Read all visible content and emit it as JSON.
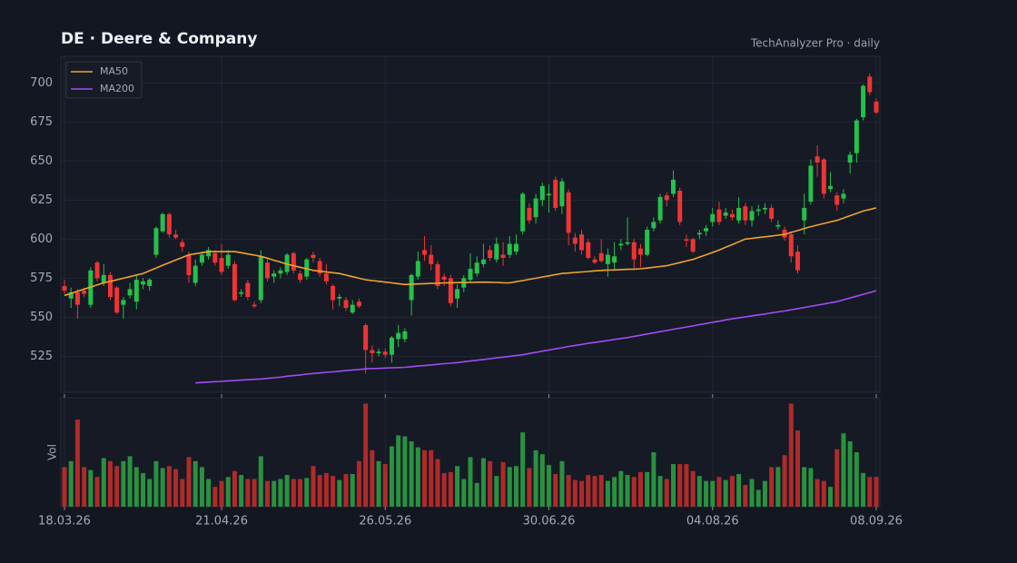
{
  "chart_data": {
    "type": "candlestick",
    "title": "DE · Deere & Company",
    "subtitle": "TechAnalyzer Pro · daily",
    "x": [
      "18.03.26",
      "19.03.26",
      "20.03.26",
      "23.03.26",
      "24.03.26",
      "25.03.26",
      "26.03.26",
      "27.03.26",
      "30.03.26",
      "31.03.26",
      "01.04.26",
      "02.04.26",
      "03.04.26",
      "06.04.26",
      "07.04.26",
      "08.04.26",
      "09.04.26",
      "10.04.26",
      "13.04.26",
      "14.04.26",
      "15.04.26",
      "16.04.26",
      "17.04.26",
      "20.04.26",
      "21.04.26",
      "22.04.26",
      "23.04.26",
      "24.04.26",
      "27.04.26",
      "28.04.26",
      "29.04.26",
      "30.04.26",
      "01.05.26",
      "04.05.26",
      "05.05.26",
      "06.05.26",
      "07.05.26",
      "08.05.26",
      "11.05.26",
      "12.05.26",
      "13.05.26",
      "14.05.26",
      "15.05.26",
      "18.05.26",
      "19.05.26",
      "20.05.26",
      "21.05.26",
      "22.05.26",
      "25.05.26",
      "26.05.26",
      "27.05.26",
      "28.05.26",
      "29.05.26",
      "01.06.26",
      "02.06.26",
      "03.06.26",
      "04.06.26",
      "05.06.26",
      "08.06.26",
      "09.06.26",
      "10.06.26",
      "11.06.26",
      "12.06.26",
      "15.06.26",
      "16.06.26",
      "17.06.26",
      "18.06.26",
      "19.06.26",
      "22.06.26",
      "23.06.26",
      "24.06.26",
      "25.06.26",
      "26.06.26",
      "29.06.26",
      "30.06.26",
      "01.07.26",
      "02.07.26",
      "03.07.26",
      "06.07.26",
      "07.07.26",
      "08.07.26",
      "09.07.26",
      "10.07.26",
      "13.07.26",
      "14.07.26",
      "15.07.26",
      "16.07.26",
      "17.07.26",
      "20.07.26",
      "21.07.26",
      "22.07.26",
      "23.07.26",
      "24.07.26",
      "27.07.26",
      "28.07.26",
      "29.07.26",
      "30.07.26",
      "31.07.26",
      "03.08.26",
      "04.08.26",
      "05.08.26",
      "06.08.26",
      "07.08.26",
      "10.08.26",
      "11.08.26",
      "12.08.26",
      "13.08.26",
      "14.08.26",
      "17.08.26",
      "18.08.26",
      "19.08.26",
      "20.08.26",
      "21.08.26",
      "24.08.26",
      "25.08.26",
      "26.08.26",
      "27.08.26",
      "28.08.26",
      "31.08.26",
      "01.09.26",
      "02.09.26",
      "03.09.26",
      "04.09.26",
      "07.09.26",
      "08.09.26"
    ],
    "open": [
      570,
      562,
      566,
      567,
      558,
      585,
      572,
      577,
      569,
      558,
      564,
      560,
      571,
      570,
      590,
      605,
      616,
      603,
      598,
      590,
      572,
      585,
      589,
      591,
      588,
      583,
      584,
      565,
      572,
      558,
      561,
      585,
      576,
      578,
      579,
      591,
      578,
      576,
      590,
      586,
      578,
      570,
      562,
      561,
      553,
      560,
      545,
      529,
      527,
      528,
      526,
      536,
      536,
      561,
      576,
      593,
      590,
      584,
      576,
      575,
      562,
      569,
      574,
      578,
      584,
      593,
      587,
      590,
      590,
      592,
      605,
      620,
      614,
      625,
      628,
      638,
      621,
      630,
      601,
      603,
      598,
      587,
      591,
      584,
      585,
      596,
      597,
      598,
      594,
      590,
      607,
      612,
      628,
      629,
      631,
      600,
      600,
      603,
      605,
      611,
      619,
      615,
      616,
      612,
      621,
      612,
      618,
      619,
      620,
      608,
      606,
      603,
      592,
      612,
      624,
      653,
      651,
      632,
      628,
      626,
      649,
      655,
      678,
      704,
      688
    ],
    "high": [
      574,
      569,
      568,
      569,
      582,
      586,
      584,
      579,
      570,
      563,
      572,
      577,
      575,
      575,
      608,
      617,
      617,
      606,
      600,
      592,
      587,
      592,
      595,
      593,
      597,
      593,
      586,
      568,
      574,
      560,
      593,
      588,
      580,
      582,
      591,
      592,
      580,
      588,
      592,
      588,
      584,
      571,
      565,
      563,
      561,
      562,
      546,
      532,
      530,
      530,
      538,
      545,
      543,
      578,
      592,
      602,
      596,
      586,
      578,
      577,
      571,
      577,
      591,
      589,
      597,
      596,
      601,
      598,
      602,
      603,
      630,
      623,
      629,
      636,
      635,
      640,
      639,
      632,
      604,
      606,
      600,
      589,
      600,
      594,
      598,
      600,
      614,
      600,
      597,
      608,
      614,
      629,
      630,
      644,
      633,
      603,
      601,
      606,
      609,
      620,
      624,
      620,
      619,
      627,
      623,
      621,
      622,
      623,
      622,
      612,
      608,
      605,
      596,
      629,
      651,
      660,
      652,
      643,
      630,
      632,
      656,
      677,
      699,
      706,
      690
    ],
    "low": [
      565,
      556,
      549,
      563,
      556,
      573,
      570,
      561,
      552,
      549,
      562,
      555,
      568,
      567,
      588,
      604,
      601,
      600,
      592,
      572,
      570,
      583,
      587,
      583,
      577,
      581,
      560,
      563,
      561,
      556,
      559,
      573,
      572,
      575,
      577,
      578,
      572,
      574,
      585,
      576,
      571,
      555,
      557,
      554,
      552,
      556,
      514,
      521,
      525,
      524,
      521,
      531,
      534,
      551,
      574,
      586,
      580,
      568,
      570,
      557,
      556,
      566,
      572,
      576,
      582,
      586,
      585,
      583,
      588,
      590,
      603,
      610,
      610,
      621,
      617,
      618,
      616,
      596,
      592,
      590,
      587,
      584,
      585,
      576,
      580,
      593,
      596,
      581,
      582,
      589,
      605,
      610,
      621,
      627,
      609,
      595,
      591,
      600,
      602,
      608,
      609,
      613,
      612,
      610,
      609,
      608,
      615,
      616,
      611,
      606,
      599,
      585,
      578,
      603,
      622,
      640,
      626,
      630,
      618,
      623,
      642,
      649,
      676,
      692,
      680
    ],
    "close": [
      567,
      566,
      558,
      565,
      580,
      575,
      577,
      563,
      553,
      561,
      568,
      574,
      573,
      574,
      607,
      616,
      603,
      601,
      595,
      577,
      583,
      590,
      593,
      585,
      579,
      590,
      561,
      566,
      563,
      557,
      589,
      575,
      578,
      580,
      590,
      580,
      574,
      587,
      588,
      578,
      573,
      561,
      563,
      556,
      558,
      557,
      529,
      527,
      528,
      526,
      537,
      540,
      541,
      577,
      586,
      590,
      584,
      570,
      574,
      559,
      568,
      575,
      581,
      585,
      587,
      588,
      597,
      588,
      597,
      597,
      629,
      612,
      626,
      634,
      629,
      620,
      637,
      604,
      597,
      593,
      588,
      585,
      586,
      590,
      589,
      597,
      598,
      587,
      590,
      606,
      611,
      627,
      625,
      638,
      611,
      599,
      592,
      604,
      607,
      616,
      611,
      617,
      614,
      620,
      612,
      618,
      619,
      620,
      613,
      609,
      601,
      589,
      580,
      620,
      647,
      649,
      629,
      634,
      622,
      629,
      654,
      676,
      698,
      694,
      681
    ],
    "up_color": "#26c04a",
    "down_color": "#ef3434",
    "series": [
      {
        "name": "MA50",
        "color": "#f0a32e",
        "values": [
          564,
          565.3,
          566.7,
          568,
          569.3,
          570.7,
          572,
          573,
          574,
          575,
          576,
          577,
          578,
          579.8,
          581.5,
          583.3,
          585,
          586.7,
          588.3,
          590,
          590.7,
          591.3,
          592,
          592,
          592,
          592,
          592,
          591.3,
          590.5,
          589.8,
          589,
          587.8,
          586.5,
          585.3,
          584,
          583,
          582,
          581,
          580,
          579.5,
          579,
          578.5,
          578,
          577,
          576,
          575,
          574,
          573.5,
          573,
          572.5,
          572,
          571.5,
          571,
          571.2,
          571.3,
          571.5,
          571.7,
          571.8,
          572,
          572.1,
          572.2,
          572.2,
          572.3,
          572.4,
          572.5,
          572.4,
          572.3,
          572.1,
          572,
          572.8,
          573.5,
          574.3,
          575,
          575.8,
          576.5,
          577.3,
          578,
          578.3,
          578.7,
          579,
          579.3,
          579.7,
          580,
          580.2,
          580.3,
          580.5,
          580.7,
          580.8,
          581,
          581.5,
          582,
          582.5,
          583,
          584,
          585,
          586,
          587,
          588.5,
          590,
          591.5,
          593,
          594.8,
          596.5,
          598.3,
          600,
          600.5,
          601,
          601.5,
          602,
          602.5,
          603,
          604.3,
          605.5,
          606.8,
          608,
          609,
          610,
          611,
          612,
          613.5,
          615,
          616.5,
          618,
          619,
          620
        ]
      },
      {
        "name": "MA200",
        "color": "#a24df0",
        "values": [
          null,
          null,
          null,
          null,
          null,
          null,
          null,
          null,
          null,
          null,
          null,
          null,
          null,
          null,
          null,
          null,
          null,
          null,
          null,
          null,
          508,
          508.3,
          508.5,
          508.8,
          509,
          509.3,
          509.5,
          509.8,
          510,
          510.3,
          510.5,
          510.9,
          511.3,
          511.7,
          512.3,
          512.7,
          513.1,
          513.6,
          514,
          514.4,
          514.8,
          515.1,
          515.5,
          515.9,
          516.3,
          516.6,
          517,
          517.2,
          517.3,
          517.5,
          517.7,
          517.8,
          518,
          518.4,
          518.8,
          519.1,
          519.5,
          519.9,
          520.3,
          520.6,
          521,
          521.5,
          522,
          522.5,
          523,
          523.5,
          524,
          524.5,
          525,
          525.5,
          526,
          526.8,
          527.5,
          528.3,
          529,
          529.8,
          530.5,
          531.3,
          532,
          532.6,
          533.3,
          533.9,
          534.5,
          535.1,
          535.8,
          536.4,
          537,
          537.8,
          538.5,
          539.3,
          540,
          540.8,
          541.5,
          542.3,
          543,
          543.8,
          544.5,
          545.3,
          546,
          546.8,
          547.5,
          548.3,
          549,
          549.6,
          550.3,
          550.9,
          551.5,
          552.1,
          552.8,
          553.4,
          554,
          554.8,
          555.5,
          556.3,
          557,
          557.8,
          558.5,
          559.3,
          560,
          561.2,
          562.3,
          563.5,
          564.7,
          565.8,
          567
        ]
      }
    ],
    "volume": {
      "label": "Vol",
      "up_color": "#2a9140",
      "down_color": "#b02a2a",
      "ylim": [
        0,
        110
      ],
      "values": [
        40,
        46,
        88,
        40,
        37,
        30,
        49,
        46,
        41,
        46,
        51,
        40,
        34,
        28,
        46,
        39,
        41,
        38,
        28,
        50,
        46,
        40,
        28,
        20,
        26,
        30,
        36,
        32,
        28,
        28,
        51,
        26,
        26,
        28,
        32,
        28,
        28,
        29,
        41,
        32,
        34,
        31,
        27,
        33,
        33,
        46,
        104,
        57,
        46,
        43,
        61,
        72,
        71,
        66,
        60,
        57,
        57,
        48,
        34,
        35,
        41,
        28,
        50,
        24,
        49,
        46,
        31,
        45,
        40,
        41,
        75,
        39,
        57,
        53,
        42,
        33,
        46,
        32,
        27,
        26,
        32,
        31,
        32,
        26,
        30,
        36,
        32,
        30,
        35,
        35,
        55,
        31,
        28,
        43,
        43,
        43,
        36,
        31,
        26,
        26,
        30,
        27,
        31,
        33,
        22,
        28,
        17,
        26,
        40,
        40,
        52,
        104,
        77,
        40,
        39,
        28,
        26,
        20,
        58,
        74,
        66,
        55,
        34,
        30,
        30
      ]
    },
    "ylim": [
      502,
      717
    ],
    "yticks": [
      525,
      550,
      575,
      600,
      625,
      650,
      675,
      700
    ],
    "xticks": [
      "18.03.26",
      "21.04.26",
      "26.05.26",
      "30.06.26",
      "04.08.26",
      "08.09.26"
    ],
    "grid": true,
    "legend": "upper left"
  }
}
